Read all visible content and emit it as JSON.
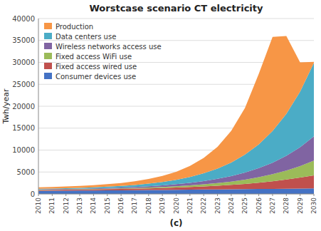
{
  "chart_data": {
    "type": "area",
    "stacked": true,
    "title": "Worstcase scenario CT electricity",
    "x_label": "(c)",
    "y_label": "Twh/year",
    "x": [
      2010,
      2011,
      2012,
      2013,
      2014,
      2015,
      2016,
      2017,
      2018,
      2019,
      2020,
      2021,
      2022,
      2023,
      2024,
      2025,
      2026,
      2027,
      2028,
      2029,
      2030
    ],
    "series": [
      {
        "name": "Consumer devices use",
        "color": "#4472C4",
        "values": [
          700,
          720,
          740,
          760,
          780,
          800,
          820,
          850,
          880,
          910,
          940,
          970,
          1000,
          1030,
          1060,
          1090,
          1120,
          1150,
          1180,
          1210,
          1240
        ]
      },
      {
        "name": "Fixed access wired use",
        "color": "#C0504D",
        "values": [
          200,
          210,
          225,
          240,
          260,
          285,
          315,
          350,
          395,
          450,
          520,
          605,
          710,
          840,
          1000,
          1200,
          1450,
          1750,
          2100,
          2520,
          3000
        ]
      },
      {
        "name": "Fixed access WiFi use",
        "color": "#9BBB59",
        "values": [
          60,
          65,
          72,
          80,
          90,
          105,
          125,
          150,
          185,
          230,
          290,
          365,
          465,
          595,
          760,
          975,
          1250,
          1600,
          2050,
          2620,
          3350
        ]
      },
      {
        "name": "Wireless networks access use",
        "color": "#8064A2",
        "values": [
          80,
          90,
          103,
          118,
          138,
          163,
          196,
          239,
          295,
          370,
          468,
          596,
          762,
          976,
          1250,
          1603,
          2054,
          2632,
          3370,
          4315,
          5530
        ]
      },
      {
        "name": "Data centers use",
        "color": "#4BACC6",
        "values": [
          130,
          148,
          172,
          202,
          242,
          295,
          365,
          460,
          590,
          770,
          1010,
          1330,
          1760,
          2330,
          3090,
          4100,
          5430,
          7200,
          9540,
          12650,
          16760
        ]
      },
      {
        "name": "Production",
        "color": "#F79646",
        "values": [
          330,
          355,
          388,
          430,
          490,
          570,
          679,
          831,
          1055,
          1370,
          1832,
          2511,
          3503,
          4979,
          7230,
          10680,
          16080,
          21470,
          17760,
          6685,
          230
        ]
      }
    ],
    "xlim": [
      2010,
      2030
    ],
    "xticks": [
      2010,
      2011,
      2012,
      2013,
      2014,
      2015,
      2016,
      2017,
      2018,
      2019,
      2020,
      2021,
      2022,
      2023,
      2024,
      2025,
      2026,
      2027,
      2028,
      2029,
      2030
    ],
    "ylim": [
      0,
      40000
    ],
    "yticks": [
      0,
      5000,
      10000,
      15000,
      20000,
      25000,
      30000,
      35000,
      40000
    ],
    "grid": true,
    "legend": "upper left"
  }
}
